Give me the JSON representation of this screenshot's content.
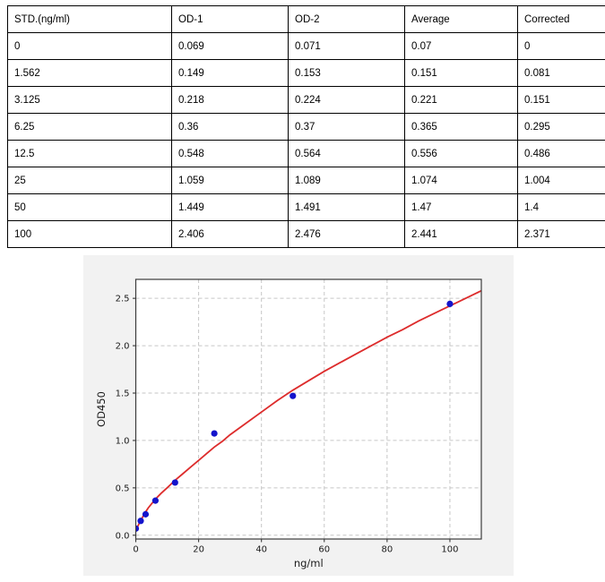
{
  "table": {
    "columns": [
      "STD.(ng/ml)",
      "OD-1",
      "OD-2",
      "Average",
      "Corrected"
    ],
    "rows": [
      [
        "0",
        "0.069",
        "0.071",
        "0.07",
        "0"
      ],
      [
        "1.562",
        "0.149",
        "0.153",
        "0.151",
        "0.081"
      ],
      [
        "3.125",
        "0.218",
        "0.224",
        "0.221",
        "0.151"
      ],
      [
        "6.25",
        "0.36",
        "0.37",
        "0.365",
        "0.295"
      ],
      [
        "12.5",
        "0.548",
        "0.564",
        "0.556",
        "0.486"
      ],
      [
        "25",
        "1.059",
        "1.089",
        "1.074",
        "1.004"
      ],
      [
        "50",
        "1.449",
        "1.491",
        "1.47",
        "1.4"
      ],
      [
        "100",
        "2.406",
        "2.476",
        "2.441",
        "2.371"
      ]
    ]
  },
  "chart_data": {
    "type": "scatter",
    "title": "",
    "xlabel": "ng/ml",
    "ylabel": "OD450",
    "xlim": [
      0,
      110
    ],
    "ylim": [
      -0.04,
      2.7
    ],
    "grid": true,
    "legend": "none",
    "x_tick_labels": [
      "0",
      "20",
      "40",
      "60",
      "80",
      "100"
    ],
    "y_tick_labels": [
      "0.0",
      "0.5",
      "1.0",
      "1.5",
      "2.0",
      "2.5"
    ],
    "points": {
      "name": "Average OD450 vs concentration",
      "x": [
        0,
        1.562,
        3.125,
        6.25,
        12.5,
        25,
        50,
        100
      ],
      "y": [
        0.07,
        0.151,
        0.221,
        0.365,
        0.556,
        1.074,
        1.47,
        2.441
      ]
    },
    "fit_curve": {
      "name": "standard-curve-fit",
      "samples": [
        [
          0,
          0.05
        ],
        [
          1,
          0.12
        ],
        [
          2,
          0.18
        ],
        [
          3,
          0.24
        ],
        [
          4,
          0.29
        ],
        [
          5,
          0.33
        ],
        [
          6.25,
          0.38
        ],
        [
          8,
          0.44
        ],
        [
          10,
          0.5
        ],
        [
          12.5,
          0.58
        ],
        [
          15,
          0.65
        ],
        [
          17.5,
          0.72
        ],
        [
          20,
          0.79
        ],
        [
          22.5,
          0.86
        ],
        [
          25,
          0.93
        ],
        [
          27.5,
          0.99
        ],
        [
          30,
          1.06
        ],
        [
          35,
          1.18
        ],
        [
          40,
          1.3
        ],
        [
          45,
          1.42
        ],
        [
          50,
          1.53
        ],
        [
          55,
          1.63
        ],
        [
          60,
          1.73
        ],
        [
          65,
          1.82
        ],
        [
          70,
          1.91
        ],
        [
          75,
          2.0
        ],
        [
          80,
          2.09
        ],
        [
          85,
          2.17
        ],
        [
          90,
          2.26
        ],
        [
          95,
          2.34
        ],
        [
          100,
          2.42
        ],
        [
          105,
          2.5
        ],
        [
          110,
          2.58
        ]
      ]
    },
    "colors": {
      "point": "#1414cc",
      "curve": "#dd2c2c",
      "figure_bg": "#f2f2f2",
      "plot_bg": "#ffffff",
      "grid": "#c6c6c6",
      "spine": "#3b3b3b",
      "text": "#1a1a1a"
    }
  }
}
